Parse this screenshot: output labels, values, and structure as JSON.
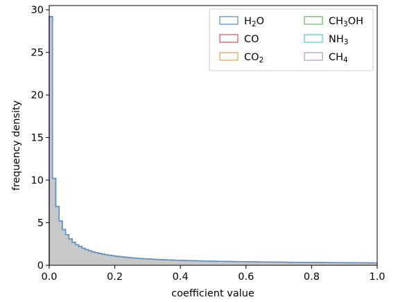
{
  "chart_data": {
    "type": "histogram",
    "xlabel": "coefficient value",
    "ylabel": "frequency density",
    "xlim": [
      0.0,
      1.0
    ],
    "ylim": [
      0,
      30.5
    ],
    "x_ticks": [
      0.0,
      0.2,
      0.4,
      0.6,
      0.8,
      1.0
    ],
    "x_tick_labels": [
      "0.0",
      "0.2",
      "0.4",
      "0.6",
      "0.8",
      "1.0"
    ],
    "y_ticks": [
      0,
      5,
      10,
      15,
      20,
      25,
      30
    ],
    "y_tick_labels": [
      "0",
      "5",
      "10",
      "15",
      "20",
      "25",
      "30"
    ],
    "bin_width": 0.01,
    "bin_values": [
      29.2,
      10.2,
      6.9,
      5.2,
      4.2,
      3.6,
      3.1,
      2.7,
      2.42,
      2.2,
      2.0,
      1.84,
      1.7,
      1.58,
      1.48,
      1.4,
      1.32,
      1.25,
      1.18,
      1.12,
      1.07,
      1.02,
      0.98,
      0.94,
      0.9,
      0.87,
      0.84,
      0.81,
      0.78,
      0.76,
      0.74,
      0.72,
      0.7,
      0.68,
      0.66,
      0.645,
      0.63,
      0.615,
      0.6,
      0.59,
      0.575,
      0.565,
      0.555,
      0.545,
      0.535,
      0.525,
      0.515,
      0.505,
      0.497,
      0.489,
      0.481,
      0.474,
      0.467,
      0.46,
      0.453,
      0.447,
      0.44,
      0.434,
      0.428,
      0.423,
      0.417,
      0.412,
      0.407,
      0.402,
      0.397,
      0.392,
      0.387,
      0.383,
      0.378,
      0.374,
      0.37,
      0.366,
      0.362,
      0.358,
      0.354,
      0.35,
      0.347,
      0.343,
      0.34,
      0.336,
      0.333,
      0.33,
      0.326,
      0.323,
      0.32,
      0.317,
      0.314,
      0.311,
      0.308,
      0.305,
      0.303,
      0.3,
      0.297,
      0.295,
      0.292,
      0.29,
      0.287,
      0.285,
      0.282,
      0.28
    ],
    "fill_color": "#c8c8c8",
    "grid": false,
    "legend_position": "top-right",
    "legend_columns": 2,
    "series": [
      {
        "name": "H₂O",
        "color": "#5a8fc8",
        "label_parts": [
          {
            "t": "H"
          },
          {
            "t": "2",
            "sub": true
          },
          {
            "t": "O"
          }
        ]
      },
      {
        "name": "CO",
        "color": "#e05a5a",
        "label_parts": [
          {
            "t": "CO"
          }
        ]
      },
      {
        "name": "CO₂",
        "color": "#f5a04a",
        "label_parts": [
          {
            "t": "CO"
          },
          {
            "t": "2",
            "sub": true
          }
        ]
      },
      {
        "name": "CH₃OH",
        "color": "#6cbd6c",
        "label_parts": [
          {
            "t": "CH"
          },
          {
            "t": "3",
            "sub": true
          },
          {
            "t": "OH"
          }
        ]
      },
      {
        "name": "NH₃",
        "color": "#4fd3de",
        "label_parts": [
          {
            "t": "NH"
          },
          {
            "t": "3",
            "sub": true
          }
        ]
      },
      {
        "name": "CH₄",
        "color": "#b59ad6",
        "label_parts": [
          {
            "t": "CH"
          },
          {
            "t": "4",
            "sub": true
          }
        ]
      }
    ]
  }
}
